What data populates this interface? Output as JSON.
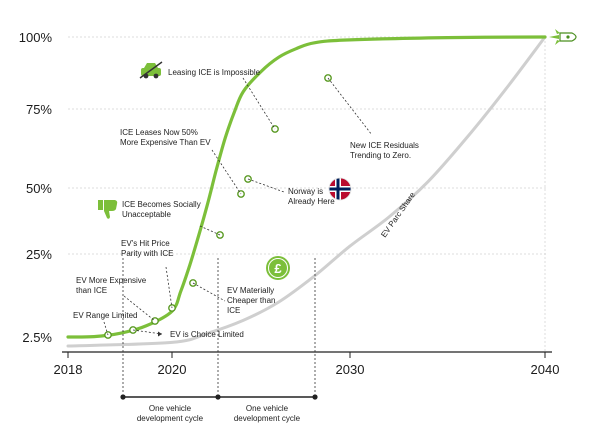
{
  "chart_data": {
    "type": "line",
    "x_axis": {
      "min": 2018,
      "max": 2040,
      "ticks": [
        2018,
        2020,
        2030,
        2040
      ]
    },
    "y_axis": {
      "ticks": [
        "2.5%",
        "25%",
        "50%",
        "75%",
        "100%"
      ]
    },
    "grid": "horizontal dashed",
    "series": [
      {
        "color": "#7cbf3a",
        "points": [
          [
            2018,
            2.5
          ],
          [
            2018.5,
            2.6
          ],
          [
            2019,
            3.5
          ],
          [
            2019.5,
            5.5
          ],
          [
            2020,
            9.5
          ],
          [
            2020.5,
            15
          ],
          [
            2021,
            22
          ],
          [
            2021.5,
            32
          ],
          [
            2022,
            44
          ],
          [
            2022.5,
            56
          ],
          [
            2023,
            66
          ],
          [
            2023.5,
            74
          ],
          [
            2024,
            81
          ],
          [
            2025,
            88
          ],
          [
            2026,
            93
          ],
          [
            2027,
            96
          ],
          [
            2028,
            98
          ],
          [
            2030,
            99
          ],
          [
            2035,
            99.8
          ],
          [
            2040,
            100
          ]
        ],
        "markers": [
          [
            2020.8,
            5.5
          ],
          [
            2021.8,
            8
          ],
          [
            2022.7,
            11
          ],
          [
            2023.1,
            14
          ],
          [
            2024.3,
            21
          ],
          [
            2025.3,
            32
          ],
          [
            2026.5,
            47
          ],
          [
            2026.8,
            53
          ],
          [
            2028.2,
            69
          ],
          [
            2031.5,
            86
          ]
        ]
      },
      {
        "name": "EV Parc Share",
        "color": "#cfcfcf",
        "points": [
          [
            2018,
            0
          ],
          [
            2020,
            1
          ],
          [
            2022,
            3.5
          ],
          [
            2024,
            7
          ],
          [
            2026,
            12
          ],
          [
            2028,
            19
          ],
          [
            2030,
            28
          ],
          [
            2032,
            39
          ],
          [
            2034,
            52
          ],
          [
            2036,
            66
          ],
          [
            2038,
            82
          ],
          [
            2040,
            100
          ]
        ]
      }
    ],
    "annotations": [
      {
        "id": "leasing",
        "text": [
          "Leasing ICE is Impossible"
        ],
        "icon": "car-icon"
      },
      {
        "id": "leases50",
        "text": [
          "ICE Leases Now 50%",
          "More Expensive Than EV"
        ]
      },
      {
        "id": "social",
        "text": [
          "ICE Becomes Socially",
          "Unacceptable"
        ],
        "icon": "thumbs-down-icon"
      },
      {
        "id": "parity",
        "text": [
          "EV's Hit Price",
          "Parity with ICE"
        ]
      },
      {
        "id": "moreexp",
        "text": [
          "EV More Expensive",
          "than ICE"
        ]
      },
      {
        "id": "range",
        "text": [
          "EV Range Limited"
        ]
      },
      {
        "id": "choice",
        "text": [
          "EV is Choice Limited"
        ]
      },
      {
        "id": "cheaper",
        "text": [
          "EV Materially",
          "Cheaper than",
          "ICE"
        ],
        "icon": "pound-coin-icon"
      },
      {
        "id": "norway",
        "text": [
          "Norway is",
          "Already Here"
        ],
        "icon": "norway-flag-icon"
      },
      {
        "id": "residuals",
        "text": [
          "New ICE Residuals",
          "Trending to Zero."
        ]
      }
    ],
    "series_label": "EV Parc Share",
    "end_icon": "rocket-icon",
    "cycles": [
      {
        "label": [
          "One vehicle",
          "development cycle"
        ]
      },
      {
        "label": [
          "One vehicle",
          "development cycle"
        ]
      }
    ]
  }
}
